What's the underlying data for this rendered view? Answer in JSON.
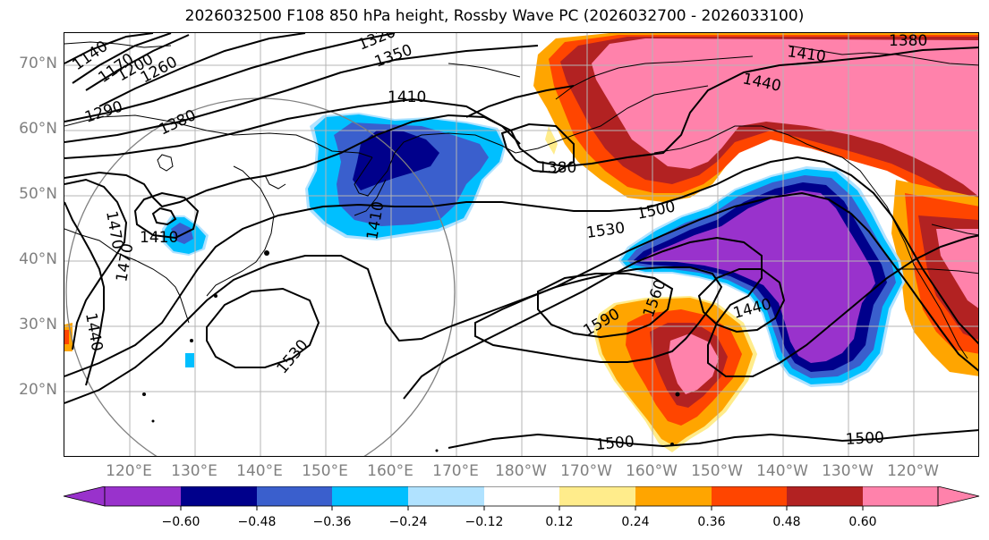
{
  "title": "2026032500 F108 850 hPa height, Rossby Wave PC (2026032700 - 2026033100)",
  "lat_labels": [
    "70°N",
    "60°N",
    "50°N",
    "40°N",
    "30°N",
    "20°N"
  ],
  "lon_labels": [
    "120°E",
    "130°E",
    "140°E",
    "150°E",
    "160°E",
    "170°E",
    "180°W",
    "170°W",
    "160°W",
    "150°W",
    "140°W",
    "130°W",
    "120°W"
  ],
  "contour_labels": [
    "1140",
    "1170",
    "1200",
    "1260",
    "1290",
    "1320",
    "1350",
    "1380",
    "1410",
    "1380",
    "1410",
    "1440",
    "1380",
    "1410",
    "1470",
    "1410",
    "1470",
    "1440",
    "1530",
    "1500",
    "1530",
    "1560",
    "1590",
    "1440",
    "1500",
    "1500"
  ],
  "colorbar": {
    "ticks": [
      "−0.60",
      "−0.48",
      "−0.36",
      "−0.24",
      "−0.12",
      "0.12",
      "0.24",
      "0.36",
      "0.48",
      "0.60"
    ],
    "colors": [
      "#9932CC",
      "#00008B",
      "#3A5FCD",
      "#00BFFF",
      "#B0E2FF",
      "#FFFFFF",
      "#FFEC8B",
      "#FFA500",
      "#FF4500",
      "#B22222",
      "#FF82AB"
    ]
  },
  "legend_colors": {
    "gridline": "#b4b4b4",
    "axis_label": "#808080",
    "coast": "#000000"
  }
}
